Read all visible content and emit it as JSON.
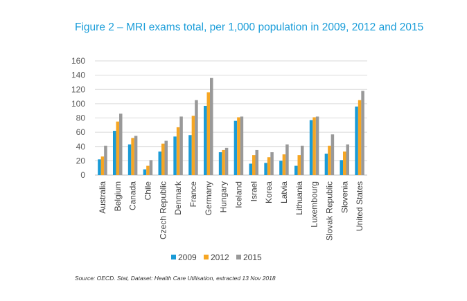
{
  "chart_data": {
    "type": "bar",
    "title": "Figure 2 – MRI exams total, per 1,000 population in 2009, 2012 and 2015",
    "xlabel": "",
    "ylabel": "",
    "ylim": [
      0,
      160
    ],
    "yticks": [
      0,
      20,
      40,
      60,
      80,
      100,
      120,
      140,
      160
    ],
    "grid": true,
    "legend_position": "bottom",
    "categories": [
      "Australia",
      "Belgium",
      "Canada",
      "Chile",
      "Czech Republic",
      "Denmark",
      "France",
      "Germany",
      "Hungary",
      "Iceland",
      "Israel",
      "Korea",
      "Latvia",
      "Lithuania",
      "Luxembourg",
      "Slovak Republic",
      "Slovenia",
      "United States"
    ],
    "series": [
      {
        "name": "2009",
        "color": "#1a9bd7",
        "values": [
          22,
          62,
          43,
          8,
          33,
          54,
          56,
          97,
          32,
          76,
          16,
          17,
          20,
          13,
          77,
          30,
          21,
          96
        ]
      },
      {
        "name": "2012",
        "color": "#f6a623",
        "values": [
          26,
          75,
          52,
          13,
          44,
          67,
          83,
          116,
          35,
          81,
          28,
          25,
          29,
          28,
          81,
          41,
          33,
          105
        ]
      },
      {
        "name": "2015",
        "color": "#999999",
        "values": [
          41,
          86,
          55,
          21,
          48,
          82,
          105,
          136,
          38,
          82,
          35,
          32,
          43,
          41,
          82,
          57,
          43,
          118
        ]
      }
    ]
  },
  "source": "Source: OECD. Stat, Dataset: Health Care Utilisation, extracted 13 Nov 2018"
}
